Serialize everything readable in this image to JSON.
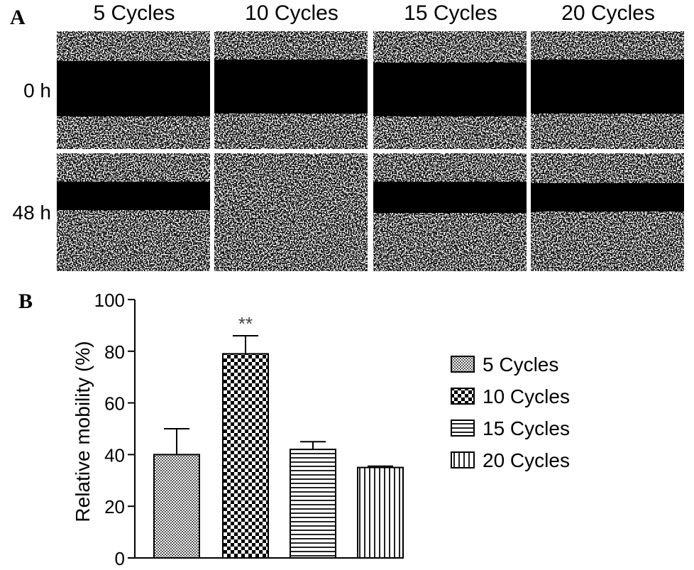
{
  "panel_a": {
    "label": "A",
    "columns": [
      "5 Cycles",
      "10 Cycles",
      "15 Cycles",
      "20 Cycles"
    ],
    "rows": [
      "0 h",
      "48 h"
    ]
  },
  "panel_b": {
    "label": "B"
  },
  "chart_data": {
    "type": "bar",
    "categories": [
      "5 Cycles",
      "10 Cycles",
      "15 Cycles",
      "20 Cycles"
    ],
    "values": [
      40,
      79,
      42,
      35
    ],
    "errors": [
      10,
      7,
      3,
      0.5
    ],
    "annotations": [
      "",
      "**",
      "",
      ""
    ],
    "ylabel": "Relative mobility (%)",
    "ylim": [
      0,
      100
    ],
    "yticks": [
      "0",
      "20",
      "40",
      "60",
      "80",
      "100"
    ],
    "legend": {
      "position": "right",
      "entries": [
        "5 Cycles",
        "10 Cycles",
        "15 Cycles",
        "20 Cycles"
      ]
    },
    "grid": false
  }
}
